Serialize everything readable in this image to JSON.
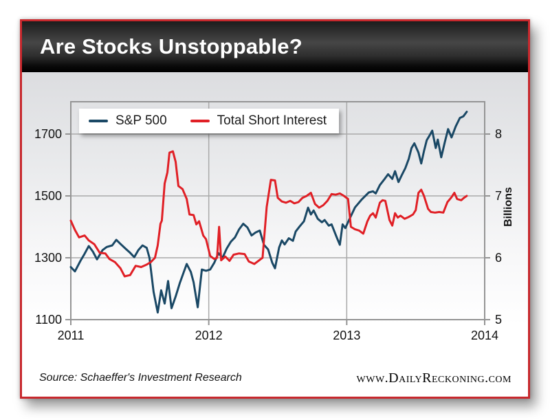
{
  "frame": {
    "title": "Are Stocks Unstoppable?",
    "accent_red": "#c8282d"
  },
  "footer": {
    "source": "Source: Schaeffer's Investment Research",
    "website": "www.DailyReckoning.com"
  },
  "chart_data": {
    "type": "line",
    "title": "Are Stocks Unstoppable?",
    "grid": true,
    "legend_position": "top-left",
    "x_axis": {
      "ticks": [
        2011,
        2012,
        2013,
        2014
      ],
      "range": [
        2011,
        2014
      ]
    },
    "y_left": {
      "ticks": [
        1100,
        1300,
        1500,
        1700
      ],
      "range": [
        1100,
        1805
      ]
    },
    "y_right": {
      "label": "Billions",
      "ticks": [
        5,
        6,
        7,
        8
      ],
      "range": [
        5,
        8.52
      ]
    },
    "legend": [
      {
        "name": "S&P 500",
        "color": "#1a4865"
      },
      {
        "name": "Total Short Interest",
        "color": "#e01f25"
      }
    ],
    "series": [
      {
        "name": "S&P 500",
        "axis": "left",
        "color": "#1a4865",
        "points": [
          [
            2011.0,
            1270
          ],
          [
            2011.03,
            1256
          ],
          [
            2011.07,
            1290
          ],
          [
            2011.1,
            1313
          ],
          [
            2011.13,
            1338
          ],
          [
            2011.16,
            1320
          ],
          [
            2011.19,
            1295
          ],
          [
            2011.23,
            1325
          ],
          [
            2011.26,
            1335
          ],
          [
            2011.3,
            1340
          ],
          [
            2011.33,
            1358
          ],
          [
            2011.36,
            1345
          ],
          [
            2011.4,
            1328
          ],
          [
            2011.43,
            1316
          ],
          [
            2011.46,
            1302
          ],
          [
            2011.49,
            1325
          ],
          [
            2011.52,
            1340
          ],
          [
            2011.55,
            1332
          ],
          [
            2011.57,
            1300
          ],
          [
            2011.6,
            1190
          ],
          [
            2011.63,
            1123
          ],
          [
            2011.655,
            1195
          ],
          [
            2011.68,
            1152
          ],
          [
            2011.705,
            1225
          ],
          [
            2011.73,
            1137
          ],
          [
            2011.76,
            1175
          ],
          [
            2011.79,
            1218
          ],
          [
            2011.82,
            1255
          ],
          [
            2011.84,
            1280
          ],
          [
            2011.87,
            1254
          ],
          [
            2011.89,
            1221
          ],
          [
            2011.92,
            1140
          ],
          [
            2011.95,
            1262
          ],
          [
            2011.98,
            1258
          ],
          [
            2012.01,
            1262
          ],
          [
            2012.04,
            1284
          ],
          [
            2012.07,
            1315
          ],
          [
            2012.1,
            1300
          ],
          [
            2012.13,
            1330
          ],
          [
            2012.16,
            1352
          ],
          [
            2012.19,
            1366
          ],
          [
            2012.22,
            1392
          ],
          [
            2012.25,
            1410
          ],
          [
            2012.28,
            1398
          ],
          [
            2012.31,
            1372
          ],
          [
            2012.34,
            1382
          ],
          [
            2012.37,
            1388
          ],
          [
            2012.4,
            1342
          ],
          [
            2012.43,
            1327
          ],
          [
            2012.46,
            1284
          ],
          [
            2012.48,
            1266
          ],
          [
            2012.51,
            1333
          ],
          [
            2012.53,
            1356
          ],
          [
            2012.55,
            1343
          ],
          [
            2012.58,
            1363
          ],
          [
            2012.61,
            1355
          ],
          [
            2012.63,
            1385
          ],
          [
            2012.66,
            1402
          ],
          [
            2012.69,
            1418
          ],
          [
            2012.72,
            1462
          ],
          [
            2012.74,
            1440
          ],
          [
            2012.76,
            1453
          ],
          [
            2012.79,
            1426
          ],
          [
            2012.82,
            1415
          ],
          [
            2012.84,
            1422
          ],
          [
            2012.87,
            1404
          ],
          [
            2012.89,
            1408
          ],
          [
            2012.93,
            1363
          ],
          [
            2012.95,
            1342
          ],
          [
            2012.97,
            1408
          ],
          [
            2012.99,
            1396
          ],
          [
            2013.02,
            1425
          ],
          [
            2013.06,
            1463
          ],
          [
            2013.11,
            1489
          ],
          [
            2013.16,
            1511
          ],
          [
            2013.19,
            1515
          ],
          [
            2013.21,
            1508
          ],
          [
            2013.24,
            1535
          ],
          [
            2013.27,
            1552
          ],
          [
            2013.3,
            1570
          ],
          [
            2013.33,
            1555
          ],
          [
            2013.35,
            1580
          ],
          [
            2013.375,
            1545
          ],
          [
            2013.4,
            1568
          ],
          [
            2013.425,
            1590
          ],
          [
            2013.45,
            1620
          ],
          [
            2013.47,
            1655
          ],
          [
            2013.49,
            1670
          ],
          [
            2013.52,
            1640
          ],
          [
            2013.54,
            1605
          ],
          [
            2013.56,
            1645
          ],
          [
            2013.58,
            1680
          ],
          [
            2013.6,
            1695
          ],
          [
            2013.62,
            1711
          ],
          [
            2013.645,
            1655
          ],
          [
            2013.66,
            1682
          ],
          [
            2013.685,
            1625
          ],
          [
            2013.71,
            1672
          ],
          [
            2013.735,
            1716
          ],
          [
            2013.76,
            1689
          ],
          [
            2013.79,
            1725
          ],
          [
            2013.82,
            1752
          ],
          [
            2013.845,
            1757
          ],
          [
            2013.87,
            1772
          ]
        ]
      },
      {
        "name": "Total Short Interest",
        "axis": "right",
        "color": "#e01f25",
        "points": [
          [
            2011.0,
            6.6
          ],
          [
            2011.03,
            6.45
          ],
          [
            2011.06,
            6.33
          ],
          [
            2011.1,
            6.36
          ],
          [
            2011.13,
            6.28
          ],
          [
            2011.17,
            6.22
          ],
          [
            2011.21,
            6.08
          ],
          [
            2011.25,
            6.07
          ],
          [
            2011.28,
            5.98
          ],
          [
            2011.32,
            5.93
          ],
          [
            2011.36,
            5.83
          ],
          [
            2011.39,
            5.7
          ],
          [
            2011.43,
            5.72
          ],
          [
            2011.47,
            5.87
          ],
          [
            2011.51,
            5.85
          ],
          [
            2011.55,
            5.89
          ],
          [
            2011.58,
            5.93
          ],
          [
            2011.61,
            6.0
          ],
          [
            2011.63,
            6.2
          ],
          [
            2011.65,
            6.55
          ],
          [
            2011.66,
            6.6
          ],
          [
            2011.68,
            7.2
          ],
          [
            2011.7,
            7.38
          ],
          [
            2011.715,
            7.7
          ],
          [
            2011.74,
            7.72
          ],
          [
            2011.76,
            7.55
          ],
          [
            2011.78,
            7.16
          ],
          [
            2011.81,
            7.11
          ],
          [
            2011.84,
            6.95
          ],
          [
            2011.86,
            6.7
          ],
          [
            2011.89,
            6.69
          ],
          [
            2011.91,
            6.54
          ],
          [
            2011.93,
            6.59
          ],
          [
            2011.96,
            6.36
          ],
          [
            2011.98,
            6.3
          ],
          [
            2012.01,
            6.03
          ],
          [
            2012.04,
            5.98
          ],
          [
            2012.06,
            6.0
          ],
          [
            2012.075,
            6.5
          ],
          [
            2012.09,
            5.96
          ],
          [
            2012.12,
            6.02
          ],
          [
            2012.15,
            5.95
          ],
          [
            2012.18,
            6.05
          ],
          [
            2012.22,
            6.07
          ],
          [
            2012.26,
            6.06
          ],
          [
            2012.29,
            5.94
          ],
          [
            2012.33,
            5.9
          ],
          [
            2012.36,
            5.95
          ],
          [
            2012.39,
            6.0
          ],
          [
            2012.42,
            6.82
          ],
          [
            2012.45,
            7.26
          ],
          [
            2012.48,
            7.25
          ],
          [
            2012.5,
            6.97
          ],
          [
            2012.53,
            6.91
          ],
          [
            2012.56,
            6.89
          ],
          [
            2012.59,
            6.92
          ],
          [
            2012.62,
            6.88
          ],
          [
            2012.65,
            6.9
          ],
          [
            2012.68,
            6.97
          ],
          [
            2012.71,
            7.0
          ],
          [
            2012.74,
            7.05
          ],
          [
            2012.77,
            6.87
          ],
          [
            2012.8,
            6.81
          ],
          [
            2012.83,
            6.85
          ],
          [
            2012.86,
            6.92
          ],
          [
            2012.89,
            7.03
          ],
          [
            2012.92,
            7.02
          ],
          [
            2012.95,
            7.04
          ],
          [
            2012.98,
            7.0
          ],
          [
            2013.01,
            6.95
          ],
          [
            2013.03,
            6.5
          ],
          [
            2013.06,
            6.46
          ],
          [
            2013.09,
            6.44
          ],
          [
            2013.12,
            6.39
          ],
          [
            2013.15,
            6.59
          ],
          [
            2013.17,
            6.68
          ],
          [
            2013.19,
            6.72
          ],
          [
            2013.21,
            6.65
          ],
          [
            2013.24,
            6.89
          ],
          [
            2013.26,
            6.93
          ],
          [
            2013.28,
            6.92
          ],
          [
            2013.31,
            6.61
          ],
          [
            2013.33,
            6.52
          ],
          [
            2013.35,
            6.72
          ],
          [
            2013.37,
            6.65
          ],
          [
            2013.39,
            6.68
          ],
          [
            2013.42,
            6.63
          ],
          [
            2013.45,
            6.66
          ],
          [
            2013.48,
            6.7
          ],
          [
            2013.5,
            6.77
          ],
          [
            2013.52,
            7.05
          ],
          [
            2013.54,
            7.1
          ],
          [
            2013.56,
            7.0
          ],
          [
            2013.59,
            6.79
          ],
          [
            2013.61,
            6.74
          ],
          [
            2013.64,
            6.73
          ],
          [
            2013.67,
            6.74
          ],
          [
            2013.7,
            6.73
          ],
          [
            2013.73,
            6.9
          ],
          [
            2013.76,
            6.98
          ],
          [
            2013.78,
            7.05
          ],
          [
            2013.8,
            6.95
          ],
          [
            2013.83,
            6.93
          ],
          [
            2013.85,
            6.97
          ],
          [
            2013.87,
            7.0
          ]
        ]
      }
    ]
  }
}
